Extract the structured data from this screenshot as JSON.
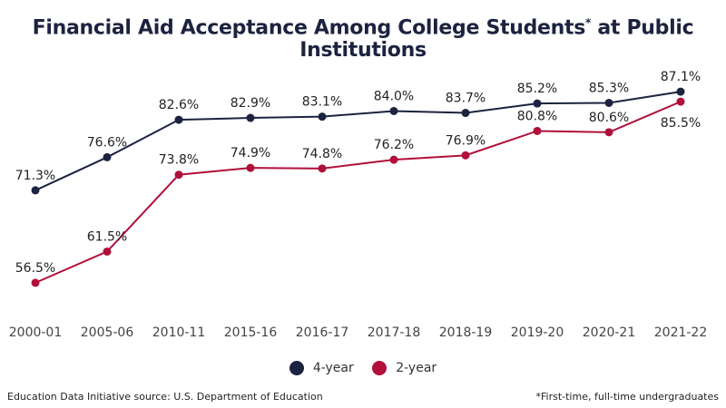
{
  "title": {
    "text": "Financial Aid Acceptance Among College Students",
    "marker": "*",
    "suffix": " at Public Institutions"
  },
  "chart_data": {
    "type": "line",
    "categories": [
      "2000-01",
      "2005-06",
      "2010-11",
      "2015-16",
      "2016-17",
      "2017-18",
      "2018-19",
      "2019-20",
      "2020-21",
      "2021-22"
    ],
    "series": [
      {
        "name": "4-year",
        "color": "#1c2340",
        "values": [
          71.3,
          76.6,
          82.6,
          82.9,
          83.1,
          84.0,
          83.7,
          85.2,
          85.3,
          87.1
        ],
        "labels": [
          "71.3%",
          "76.6%",
          "82.6%",
          "82.9%",
          "83.1%",
          "84.0%",
          "83.7%",
          "85.2%",
          "85.3%",
          "87.1%"
        ]
      },
      {
        "name": "2-year",
        "color": "#b0103a",
        "values": [
          56.5,
          61.5,
          73.8,
          74.9,
          74.8,
          76.2,
          76.9,
          80.8,
          80.6,
          85.5
        ],
        "labels": [
          "56.5%",
          "61.5%",
          "73.8%",
          "74.9%",
          "74.8%",
          "76.2%",
          "76.9%",
          "80.8%",
          "80.6%",
          "85.5%"
        ]
      }
    ],
    "ylim": [
      53,
      89
    ],
    "grid": false,
    "legend": "bottom-center"
  },
  "legend": {
    "four_year": "4-year",
    "two_year": "2-year"
  },
  "footer": {
    "source": "Education Data Initiative source: U.S. Department of Education",
    "note": "*First-time, full-time undergraduates"
  }
}
